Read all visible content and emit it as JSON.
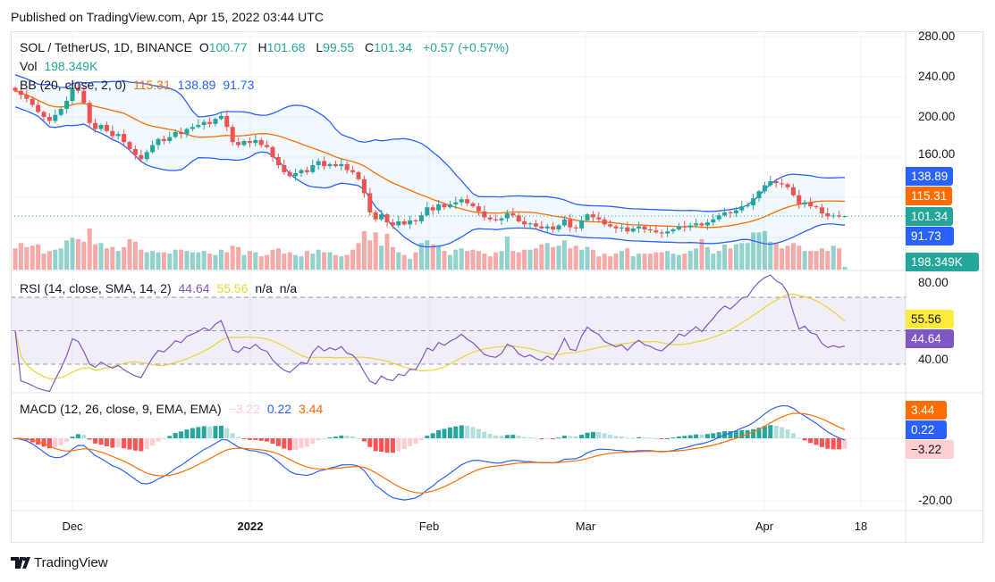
{
  "published": "Published on TradingView.com, Apr 15, 2022 03:44 UTC",
  "legend": {
    "symbol": "SOL / TetherUS, 1D, BINANCE",
    "o_label": "O",
    "o": "100.77",
    "h_label": "H",
    "h": "101.68",
    "l_label": "L",
    "l": "99.55",
    "c_label": "C",
    "c": "101.34",
    "change": "+0.57 (+0.57%)",
    "vol_label": "Vol",
    "vol": "198.349K",
    "bb_label": "BB (20, close, 2, 0)",
    "bb_basis": "115.31",
    "bb_upper": "138.89",
    "bb_lower": "91.73",
    "rsi_label": "RSI (14, close, SMA, 14, 2)",
    "rsi": "44.64",
    "rsi_sma": "55.56",
    "rsi_na1": "n/a",
    "rsi_na2": "n/a",
    "macd_label": "MACD (12, 26, close, 9, EMA, EMA)",
    "macd_hist": "−3.22",
    "macd": "0.22",
    "macd_signal": "3.44"
  },
  "price_axis": [
    "280.00",
    "240.00",
    "200.00",
    "160.00"
  ],
  "price_tags": {
    "bb_upper": "138.89",
    "bb_basis": "115.31",
    "last": "101.34",
    "bb_lower": "91.73",
    "volume": "198.349K"
  },
  "rsi_axis": [
    "80.00",
    "40.00"
  ],
  "rsi_tags": {
    "sma": "55.56",
    "rsi": "44.64"
  },
  "macd_axis": [
    "-20.00"
  ],
  "macd_tags": {
    "signal": "3.44",
    "macd": "0.22",
    "hist": "−3.22"
  },
  "time_axis": [
    "Dec",
    "2022",
    "Feb",
    "Mar",
    "Apr",
    "18"
  ],
  "logo": "TradingView",
  "colors": {
    "up": "#26a69a",
    "down": "#ef5350",
    "bb_basis": "#ff6d00",
    "bb_band": "#2962ff",
    "rsi": "#7e57c2",
    "rsi_sma": "#e8d43a",
    "macd": "#2962ff",
    "signal": "#ff6d00"
  },
  "chart_data": {
    "type": "candlestick",
    "symbol": "SOL / TetherUS",
    "interval": "1D",
    "x_start": "2021-11-21",
    "x_end": "2022-04-15",
    "ylim": [
      60,
      290
    ],
    "last_bar": {
      "open": 100.77,
      "high": 101.68,
      "low": 99.55,
      "close": 101.34,
      "volume": "198.349K"
    },
    "close": [
      226,
      222,
      218,
      212,
      205,
      200,
      196,
      202,
      208,
      216,
      229,
      226,
      214,
      194,
      188,
      192,
      186,
      181,
      183,
      175,
      168,
      162,
      158,
      165,
      172,
      178,
      176,
      180,
      185,
      183,
      188,
      190,
      192,
      195,
      193,
      198,
      201,
      190,
      175,
      172,
      176,
      174,
      177,
      172,
      170,
      160,
      152,
      145,
      141,
      144,
      147,
      145,
      152,
      156,
      151,
      153,
      151,
      153,
      147,
      145,
      138,
      124,
      105,
      98,
      103,
      95,
      92,
      96,
      93,
      97,
      96,
      102,
      110,
      107,
      113,
      110,
      113,
      115,
      118,
      114,
      111,
      106,
      100,
      98,
      97,
      99,
      104,
      102,
      96,
      93,
      94,
      91,
      89,
      91,
      88,
      92,
      98,
      90,
      89,
      97,
      103,
      100,
      98,
      93,
      91,
      89,
      90,
      86,
      89,
      91,
      88,
      87,
      85,
      84,
      86,
      88,
      91,
      90,
      92,
      94,
      92,
      95,
      98,
      102,
      105,
      104,
      107,
      111,
      112,
      119,
      126,
      132,
      136,
      134,
      133,
      130,
      122,
      113,
      115,
      111,
      110,
      104,
      101,
      101.9,
      100.77,
      101.34
    ],
    "volume_millions": [
      1.6,
      2.0,
      1.7,
      1.8,
      1.9,
      1.2,
      1.4,
      1.5,
      1.6,
      2.2,
      2.4,
      2.3,
      2.1,
      3.1,
      1.9,
      2.0,
      1.6,
      1.7,
      1.4,
      1.7,
      2.3,
      2.1,
      1.5,
      1.3,
      1.4,
      1.3,
      1.3,
      1.2,
      1.5,
      1.5,
      1.4,
      1.3,
      1.3,
      1.4,
      1.2,
      1.1,
      1.5,
      1.3,
      1.8,
      1.7,
      1.1,
      1.4,
      1.3,
      1.0,
      1.1,
      1.5,
      1.6,
      1.2,
      1.3,
      1.1,
      1.0,
      1.4,
      1.2,
      1.5,
      1.3,
      1.3,
      1.1,
      1.0,
      1.1,
      1.5,
      2.0,
      2.9,
      2.2,
      2.8,
      1.8,
      2.7,
      1.7,
      1.3,
      1.1,
      0.8,
      1.3,
      2.0,
      2.2,
      1.9,
      1.8,
      1.4,
      1.1,
      1.5,
      1.6,
      1.4,
      1.5,
      1.4,
      1.2,
      1.0,
      1.3,
      1.4,
      2.5,
      1.4,
      1.3,
      1.5,
      1.5,
      1.6,
      1.9,
      2.0,
      1.7,
      1.8,
      2.2,
      1.6,
      1.8,
      1.5,
      1.7,
      1.5,
      1.0,
      1.2,
      1.0,
      1.2,
      1.4,
      1.6,
      1.0,
      1.2,
      1.2,
      1.2,
      1.3,
      1.3,
      1.4,
      1.2,
      1.1,
      1.2,
      1.4,
      1.6,
      2.3,
      1.7,
      1.2,
      1.4,
      1.9,
      1.6,
      1.9,
      2.0,
      2.0,
      2.8,
      2.8,
      2.9,
      2.1,
      2.0,
      1.6,
      1.8,
      2.0,
      1.8,
      1.4,
      1.4,
      1.4,
      1.6,
      1.4,
      1.8,
      1.6,
      0.198
    ],
    "indicators": {
      "bollinger": {
        "length": 20,
        "mult": 2,
        "basis": 115.31,
        "upper": 138.89,
        "lower": 91.73
      },
      "rsi": {
        "length": 14,
        "sma_length": 14,
        "value": 44.64,
        "sma": 55.56,
        "bands": [
          70,
          50,
          30
        ],
        "ylim": [
          0,
          100
        ]
      },
      "macd": {
        "fast": 12,
        "slow": 26,
        "signal": 9,
        "macd": 0.22,
        "signal_value": 3.44,
        "histogram": -3.22
      }
    }
  }
}
